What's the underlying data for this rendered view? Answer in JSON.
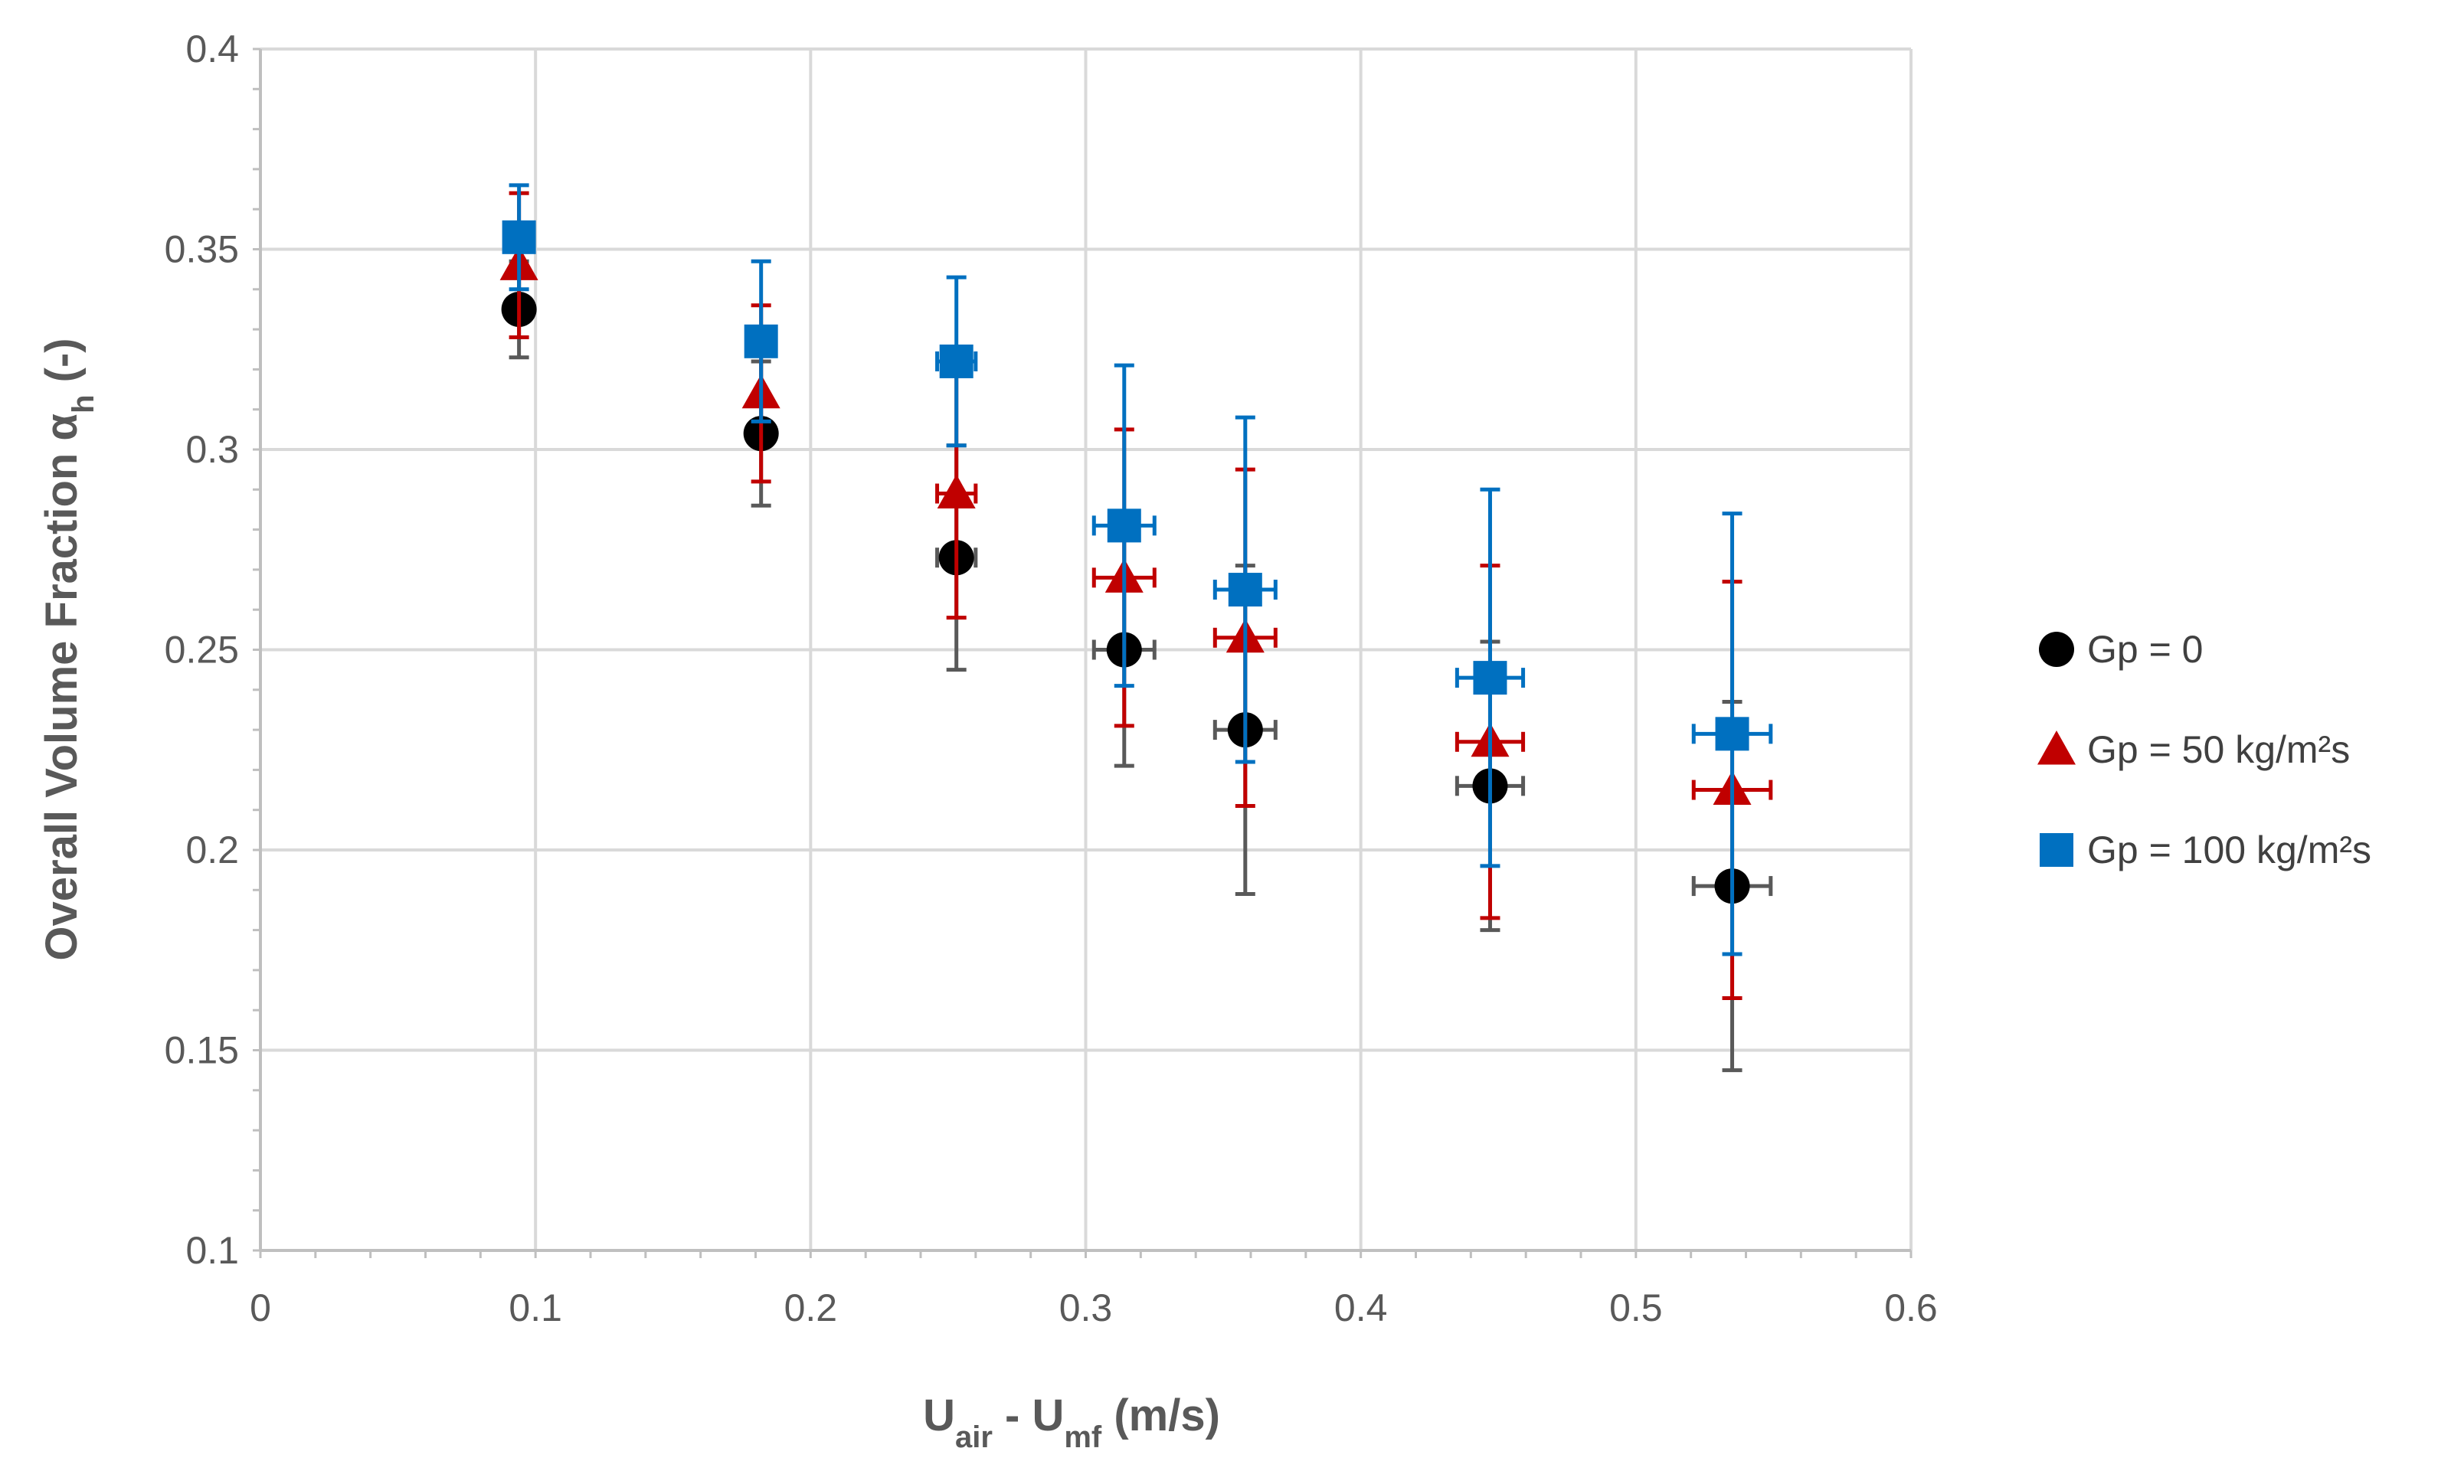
{
  "chart_data": {
    "type": "scatter",
    "title": "",
    "xlabel": {
      "main": "U",
      "sub1": "air",
      "mid": " - U",
      "sub2": "mf",
      "tail": " (m/s)"
    },
    "ylabel": {
      "main": "Overall Volume Fraction α",
      "sub": "h",
      "tail": " (-)"
    },
    "xlim": [
      0,
      0.6
    ],
    "ylim": [
      0.1,
      0.4
    ],
    "x_ticks": [
      0,
      0.1,
      0.2,
      0.3,
      0.4,
      0.5,
      0.6
    ],
    "y_ticks": [
      0.1,
      0.15,
      0.2,
      0.25,
      0.3,
      0.35,
      0.4
    ],
    "x_tick_labels": [
      "0",
      "0.1",
      "0.2",
      "0.3",
      "0.4",
      "0.5",
      "0.6"
    ],
    "y_tick_labels": [
      "0.1",
      "0.15",
      "0.2",
      "0.25",
      "0.3",
      "0.35",
      "0.4"
    ],
    "grid": true,
    "legend_position": "right",
    "series": [
      {
        "name": "Gp = 0",
        "marker": "circle",
        "color": "#000000",
        "error_color": "#595959",
        "points": [
          {
            "x": 0.094,
            "y": 0.335,
            "y_err": 0.012,
            "x_err": 0.0
          },
          {
            "x": 0.182,
            "y": 0.304,
            "y_err": 0.018,
            "x_err": 0.0
          },
          {
            "x": 0.253,
            "y": 0.273,
            "y_err": 0.028,
            "x_err": 0.007
          },
          {
            "x": 0.314,
            "y": 0.25,
            "y_err": 0.029,
            "x_err": 0.011
          },
          {
            "x": 0.358,
            "y": 0.23,
            "y_err": 0.041,
            "x_err": 0.011
          },
          {
            "x": 0.447,
            "y": 0.216,
            "y_err": 0.036,
            "x_err": 0.012
          },
          {
            "x": 0.535,
            "y": 0.191,
            "y_err": 0.046,
            "x_err": 0.014
          }
        ]
      },
      {
        "name": "Gp = 50 kg/m²s",
        "marker": "triangle",
        "color": "#c00000",
        "error_color": "#c00000",
        "points": [
          {
            "x": 0.094,
            "y": 0.346,
            "y_err": 0.018,
            "x_err": 0.0
          },
          {
            "x": 0.182,
            "y": 0.314,
            "y_err": 0.022,
            "x_err": 0.0
          },
          {
            "x": 0.253,
            "y": 0.289,
            "y_err": 0.031,
            "x_err": 0.007
          },
          {
            "x": 0.314,
            "y": 0.268,
            "y_err": 0.037,
            "x_err": 0.011
          },
          {
            "x": 0.358,
            "y": 0.253,
            "y_err": 0.042,
            "x_err": 0.011
          },
          {
            "x": 0.447,
            "y": 0.227,
            "y_err": 0.044,
            "x_err": 0.012
          },
          {
            "x": 0.535,
            "y": 0.215,
            "y_err": 0.052,
            "x_err": 0.014
          }
        ]
      },
      {
        "name": "Gp = 100 kg/m²s",
        "marker": "square",
        "color": "#0070c0",
        "error_color": "#0070c0",
        "points": [
          {
            "x": 0.094,
            "y": 0.353,
            "y_err": 0.013,
            "x_err": 0.0
          },
          {
            "x": 0.182,
            "y": 0.327,
            "y_err": 0.02,
            "x_err": 0.0
          },
          {
            "x": 0.253,
            "y": 0.322,
            "y_err": 0.021,
            "x_err": 0.007
          },
          {
            "x": 0.314,
            "y": 0.281,
            "y_err": 0.04,
            "x_err": 0.011
          },
          {
            "x": 0.358,
            "y": 0.265,
            "y_err": 0.043,
            "x_err": 0.011
          },
          {
            "x": 0.447,
            "y": 0.243,
            "y_err": 0.047,
            "x_err": 0.012
          },
          {
            "x": 0.535,
            "y": 0.229,
            "y_err": 0.055,
            "x_err": 0.014
          }
        ]
      }
    ]
  }
}
